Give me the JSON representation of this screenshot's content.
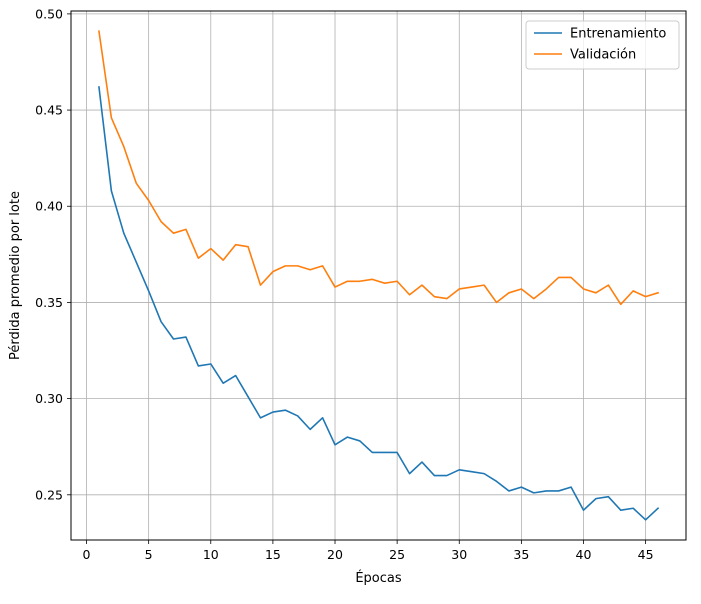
{
  "chart_data": {
    "type": "line",
    "xlabel": "Épocas",
    "ylabel": "Pérdida promedio por lote",
    "xlim": [
      -1.25,
      48.25
    ],
    "ylim": [
      0.2265,
      0.5015
    ],
    "xticks": [
      0,
      5,
      10,
      15,
      20,
      25,
      30,
      35,
      40,
      45
    ],
    "xtick_labels": [
      "0",
      "5",
      "10",
      "15",
      "20",
      "25",
      "30",
      "35",
      "40",
      "45"
    ],
    "yticks": [
      0.25,
      0.3,
      0.35,
      0.4,
      0.45,
      0.5
    ],
    "ytick_labels": [
      "0.25",
      "0.30",
      "0.35",
      "0.40",
      "0.45",
      "0.50"
    ],
    "grid": true,
    "legend_position": "top-right",
    "x": [
      1,
      2,
      3,
      4,
      5,
      6,
      7,
      8,
      9,
      10,
      11,
      12,
      13,
      14,
      15,
      16,
      17,
      18,
      19,
      20,
      21,
      22,
      23,
      24,
      25,
      26,
      27,
      28,
      29,
      30,
      31,
      32,
      33,
      34,
      35,
      36,
      37,
      38,
      39,
      40,
      41,
      42,
      43,
      44,
      45,
      46
    ],
    "series": [
      {
        "name": "Entrenamiento",
        "color": "#1f77b4",
        "values": [
          0.462,
          0.408,
          0.386,
          0.371,
          0.356,
          0.34,
          0.331,
          0.332,
          0.317,
          0.318,
          0.308,
          0.312,
          0.301,
          0.29,
          0.293,
          0.294,
          0.291,
          0.284,
          0.29,
          0.276,
          0.28,
          0.278,
          0.272,
          0.272,
          0.272,
          0.261,
          0.267,
          0.26,
          0.26,
          0.263,
          0.262,
          0.261,
          0.257,
          0.252,
          0.254,
          0.251,
          0.252,
          0.252,
          0.254,
          0.242,
          0.248,
          0.249,
          0.242,
          0.243,
          0.237,
          0.243
        ]
      },
      {
        "name": "Validación",
        "color": "#ff7f0e",
        "values": [
          0.491,
          0.446,
          0.431,
          0.412,
          0.403,
          0.392,
          0.386,
          0.388,
          0.373,
          0.378,
          0.372,
          0.38,
          0.379,
          0.359,
          0.366,
          0.369,
          0.369,
          0.367,
          0.369,
          0.358,
          0.361,
          0.361,
          0.362,
          0.36,
          0.361,
          0.354,
          0.359,
          0.353,
          0.352,
          0.357,
          0.358,
          0.359,
          0.35,
          0.355,
          0.357,
          0.352,
          0.357,
          0.363,
          0.363,
          0.357,
          0.355,
          0.359,
          0.349,
          0.356,
          0.353,
          0.355
        ]
      }
    ]
  }
}
